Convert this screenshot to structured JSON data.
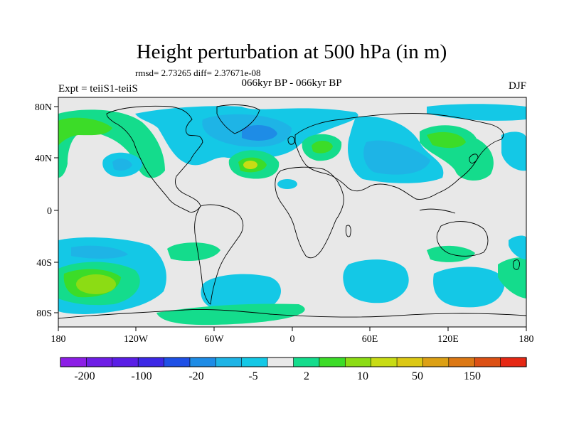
{
  "header": {
    "title": "Height perturbation at 500 hPa (in m)",
    "stats": "rmsd= 2.73265 diff= 2.37671e-08",
    "experiment": "Expt = teiiS1-teiiS",
    "period": "066kyr BP - 066kyr BP",
    "season": "DJF"
  },
  "axes": {
    "lat_labels": [
      "80N",
      "40N",
      "0",
      "40S",
      "80S"
    ],
    "lon_labels": [
      "180",
      "120W",
      "60W",
      "0",
      "60E",
      "120E",
      "180"
    ]
  },
  "colorbar": {
    "labels": [
      "-200",
      "-100",
      "-20",
      "-5",
      "2",
      "10",
      "50",
      "150"
    ],
    "colors": [
      "#8c1ee6",
      "#6e1ee6",
      "#5a1ee6",
      "#3c28e6",
      "#1e50e6",
      "#1e8ce6",
      "#1eb4e6",
      "#14c8e6",
      "#e8e8e8",
      "#14dc8c",
      "#3cdc28",
      "#8cdc14",
      "#c8dc14",
      "#dcc814",
      "#dca014",
      "#dc7814",
      "#dc5014",
      "#e62814"
    ]
  },
  "colors": {
    "ocean_land_background": "#e8e8e8",
    "cyan": "#14c8e6",
    "blue": "#1eb4e6",
    "mid_blue": "#1e8ce6",
    "green": "#14dc8c",
    "bright_green": "#3cdc28",
    "yellow_green": "#8cdc14",
    "yellow": "#c8dc14"
  }
}
